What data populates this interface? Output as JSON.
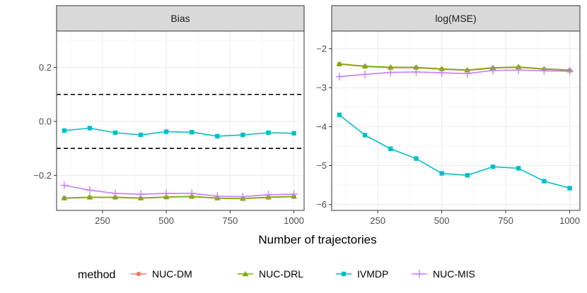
{
  "chart_data": {
    "type": "line",
    "xlabel": "Number of trajectories",
    "x": [
      100,
      200,
      300,
      400,
      500,
      600,
      700,
      800,
      900,
      1000
    ],
    "xticks": [
      250,
      500,
      750,
      1000
    ],
    "legend": {
      "title": "method",
      "position": "bottom",
      "entries": [
        "NUC-DM",
        "NUC-DRL",
        "IVMDP",
        "NUC-MIS"
      ]
    },
    "colors": {
      "NUC-DM": "#F8766D",
      "NUC-DRL": "#7CAE00",
      "IVMDP": "#00BFC4",
      "NUC-MIS": "#C77CFF"
    },
    "markers": {
      "NUC-DM": "circle",
      "NUC-DRL": "triangle",
      "IVMDP": "square",
      "NUC-MIS": "plus"
    },
    "grid": true,
    "panels": [
      {
        "title": "Bias",
        "xlim": [
          70,
          1040
        ],
        "ylim": [
          -0.33,
          0.335
        ],
        "yticks": [
          -0.2,
          0.0,
          0.2
        ],
        "ytick_labels": [
          "−0.2",
          "0.0",
          "0.2"
        ],
        "hlines": [
          0.1,
          -0.1
        ],
        "series": [
          {
            "name": "NUC-DM",
            "values": [
              -0.285,
              -0.282,
              -0.282,
              -0.285,
              -0.281,
              -0.279,
              -0.285,
              -0.287,
              -0.282,
              -0.279
            ]
          },
          {
            "name": "NUC-DRL",
            "values": [
              -0.284,
              -0.281,
              -0.281,
              -0.284,
              -0.28,
              -0.278,
              -0.284,
              -0.286,
              -0.281,
              -0.278
            ]
          },
          {
            "name": "IVMDP",
            "values": [
              -0.034,
              -0.025,
              -0.042,
              -0.05,
              -0.038,
              -0.04,
              -0.055,
              -0.05,
              -0.042,
              -0.044
            ]
          },
          {
            "name": "NUC-MIS",
            "values": [
              -0.237,
              -0.255,
              -0.267,
              -0.27,
              -0.267,
              -0.267,
              -0.277,
              -0.279,
              -0.272,
              -0.27
            ]
          }
        ]
      },
      {
        "title": "log(MSE)",
        "xlim": [
          70,
          1040
        ],
        "ylim": [
          -6.15,
          -1.55
        ],
        "yticks": [
          -6,
          -5,
          -4,
          -3,
          -2
        ],
        "ytick_labels": [
          "−6",
          "−5",
          "−4",
          "−3",
          "−2"
        ],
        "hlines": [],
        "series": [
          {
            "name": "NUC-DM",
            "values": [
              -2.4,
              -2.46,
              -2.49,
              -2.49,
              -2.53,
              -2.56,
              -2.5,
              -2.48,
              -2.53,
              -2.56
            ]
          },
          {
            "name": "NUC-DRL",
            "values": [
              -2.39,
              -2.45,
              -2.48,
              -2.48,
              -2.52,
              -2.55,
              -2.49,
              -2.47,
              -2.52,
              -2.55
            ]
          },
          {
            "name": "IVMDP",
            "values": [
              -3.7,
              -4.22,
              -4.57,
              -4.82,
              -5.2,
              -5.25,
              -5.03,
              -5.07,
              -5.4,
              -5.58
            ]
          },
          {
            "name": "NUC-MIS",
            "values": [
              -2.72,
              -2.66,
              -2.61,
              -2.6,
              -2.62,
              -2.64,
              -2.56,
              -2.55,
              -2.57,
              -2.58
            ]
          }
        ]
      }
    ]
  }
}
